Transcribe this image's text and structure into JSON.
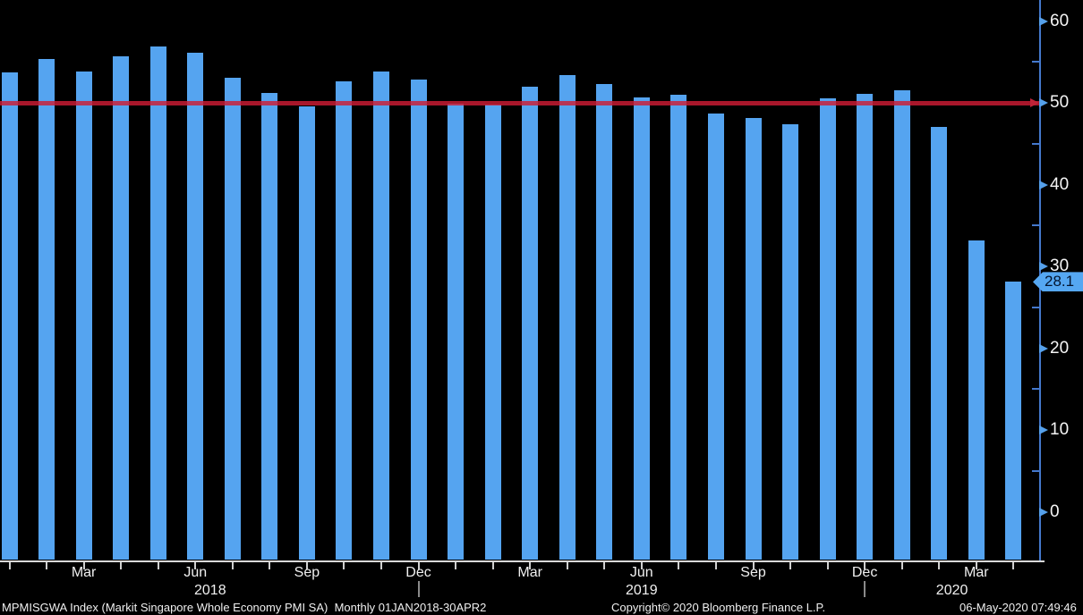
{
  "chart_data": {
    "type": "bar",
    "title": "Markit Singapore Whole Economy PMI SA",
    "security": "MPMISGWA Index",
    "periodicity": "Monthly",
    "date_range": "01JAN2018-30APR2020",
    "categories": [
      "Jan 2018",
      "Feb 2018",
      "Mar 2018",
      "Apr 2018",
      "May 2018",
      "Jun 2018",
      "Jul 2018",
      "Aug 2018",
      "Sep 2018",
      "Oct 2018",
      "Nov 2018",
      "Dec 2018",
      "Jan 2019",
      "Feb 2019",
      "Mar 2019",
      "Apr 2019",
      "May 2019",
      "Jun 2019",
      "Jul 2019",
      "Aug 2019",
      "Sep 2019",
      "Oct 2019",
      "Nov 2019",
      "Dec 2019",
      "Jan 2020",
      "Feb 2020",
      "Mar 2020",
      "Apr 2020"
    ],
    "values": [
      53.7,
      55.4,
      53.8,
      55.7,
      56.9,
      56.1,
      53.1,
      51.2,
      49.6,
      52.6,
      53.8,
      52.8,
      49.9,
      49.8,
      52.0,
      53.4,
      52.3,
      50.7,
      51.0,
      48.7,
      48.1,
      47.4,
      50.5,
      51.1,
      51.5,
      47.1,
      33.2,
      28.1
    ],
    "ylim": [
      0,
      60
    ],
    "y_ticks": [
      0,
      10,
      20,
      30,
      40,
      50,
      60
    ],
    "y_minor_ticks": [
      5,
      15,
      25,
      35,
      45,
      55
    ],
    "x_tick_labels": [
      {
        "index": 2,
        "label": "Mar"
      },
      {
        "index": 5,
        "label": "Jun"
      },
      {
        "index": 8,
        "label": "Sep"
      },
      {
        "index": 11,
        "label": "Dec"
      },
      {
        "index": 14,
        "label": "Mar"
      },
      {
        "index": 17,
        "label": "Jun"
      },
      {
        "index": 20,
        "label": "Sep"
      },
      {
        "index": 23,
        "label": "Dec"
      },
      {
        "index": 26,
        "label": "Mar"
      }
    ],
    "year_labels": [
      "2018",
      "2019",
      "2020"
    ],
    "year_separator_indices": [
      11,
      23
    ],
    "reference_line": {
      "value": 50,
      "color": "#c02338"
    },
    "last_point": {
      "label": "28.1",
      "value": 28.1
    },
    "bar_color": "#55a4f0",
    "grid": false,
    "legend_position": "none"
  },
  "footer": {
    "description": "MPMISGWA Index (Markit Singapore Whole Economy PMI SA)  Monthly 01JAN2018-30APR2",
    "copyright": "Copyright© 2020 Bloomberg Finance L.P.",
    "timestamp": "06-May-2020 07:49:46"
  }
}
